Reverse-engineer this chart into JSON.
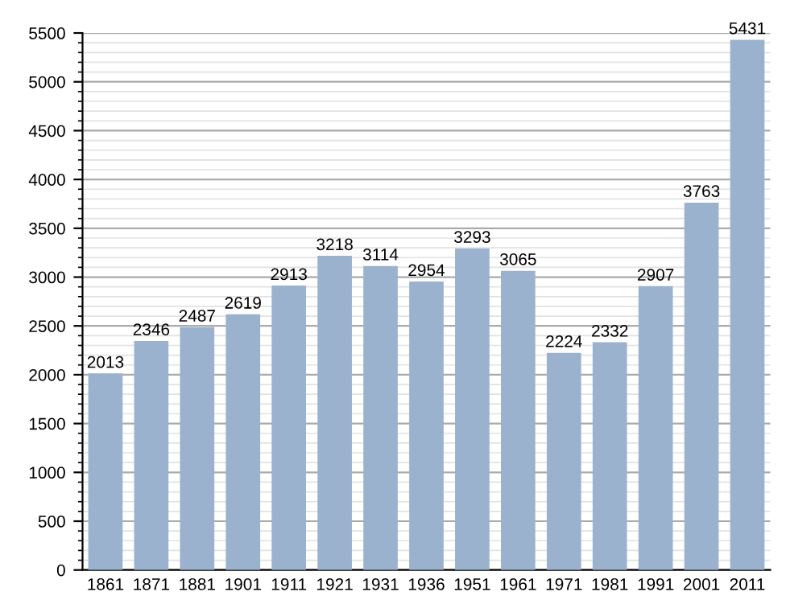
{
  "chart_data": {
    "type": "bar",
    "categories": [
      "1861",
      "1871",
      "1881",
      "1901",
      "1911",
      "1921",
      "1931",
      "1936",
      "1951",
      "1961",
      "1971",
      "1981",
      "1991",
      "2001",
      "2011"
    ],
    "values": [
      2013,
      2346,
      2487,
      2619,
      2913,
      3218,
      3114,
      2954,
      3293,
      3065,
      2224,
      2332,
      2907,
      3763,
      5431
    ],
    "color": "#9ab2cd",
    "ylim": [
      0,
      5500
    ],
    "yticks": [
      0,
      500,
      1000,
      1500,
      2000,
      2500,
      3000,
      3500,
      4000,
      4500,
      5000,
      5500
    ],
    "grid": "y",
    "data_labels": true
  }
}
